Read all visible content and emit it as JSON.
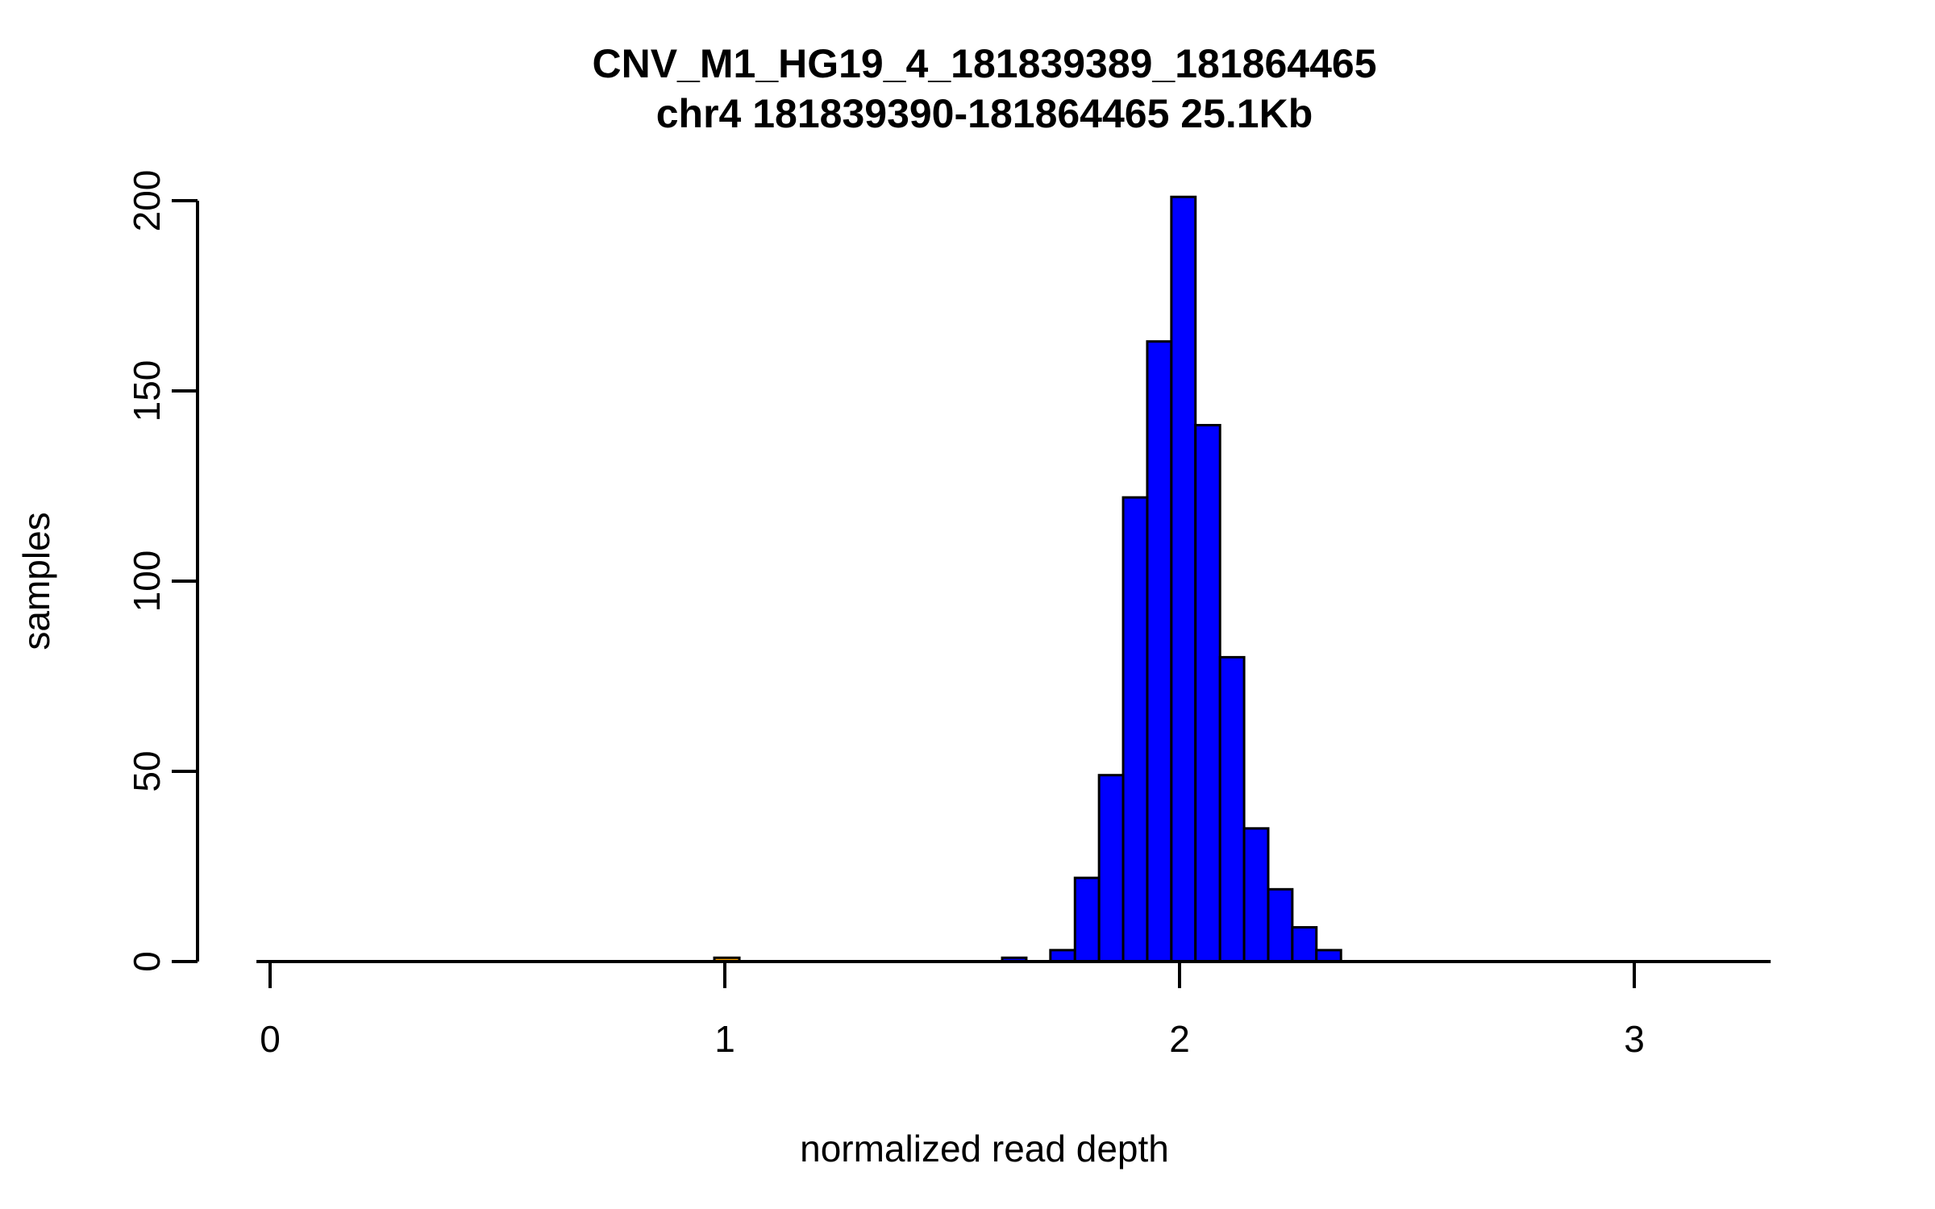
{
  "figure": {
    "title_line1": "CNV_M1_HG19_4_181839389_181864465",
    "title_line2": "chr4 181839390-181864465 25.1Kb"
  },
  "axes": {
    "x_label": "normalized read depth",
    "y_label": "samples",
    "x_tick_labels": [
      "0",
      "1",
      "2",
      "3"
    ],
    "y_tick_labels": [
      "0",
      "50",
      "100",
      "150",
      "200"
    ]
  },
  "colors": {
    "background": "#FFFFFF",
    "bar_fill": "#0000FF",
    "bar_border": "#000000",
    "highlight_fill": "#FFA500",
    "axis": "#000000",
    "text": "#000000"
  },
  "chart_data": {
    "type": "bar",
    "subtype": "histogram",
    "title": "CNV_M1_HG19_4_181839389_181864465",
    "subtitle": "chr4 181839390-181864465 25.1Kb",
    "xlabel": "normalized read depth",
    "ylabel": "samples",
    "xlim": [
      -0.03,
      3.3
    ],
    "ylim": [
      0,
      201
    ],
    "x_ticks": [
      0,
      1,
      2,
      3
    ],
    "y_ticks": [
      0,
      50,
      100,
      150,
      200
    ],
    "grid": false,
    "legend": "none",
    "bin_width": 0.053,
    "bins": [
      {
        "left": 1.61,
        "right": 1.663,
        "count": 1
      },
      {
        "left": 1.663,
        "right": 1.716,
        "count": 0
      },
      {
        "left": 1.716,
        "right": 1.77,
        "count": 3
      },
      {
        "left": 1.77,
        "right": 1.823,
        "count": 22
      },
      {
        "left": 1.823,
        "right": 1.876,
        "count": 49
      },
      {
        "left": 1.876,
        "right": 1.929,
        "count": 122
      },
      {
        "left": 1.929,
        "right": 1.982,
        "count": 163
      },
      {
        "left": 1.982,
        "right": 2.035,
        "count": 201
      },
      {
        "left": 2.035,
        "right": 2.089,
        "count": 141
      },
      {
        "left": 2.089,
        "right": 2.142,
        "count": 80
      },
      {
        "left": 2.142,
        "right": 2.195,
        "count": 35
      },
      {
        "left": 2.195,
        "right": 2.248,
        "count": 19
      },
      {
        "left": 2.248,
        "right": 2.301,
        "count": 9
      },
      {
        "left": 2.301,
        "right": 2.355,
        "count": 3
      }
    ],
    "highlight_bar": {
      "left": 0.977,
      "right": 1.032,
      "count": 1,
      "color": "#FFA500"
    }
  }
}
